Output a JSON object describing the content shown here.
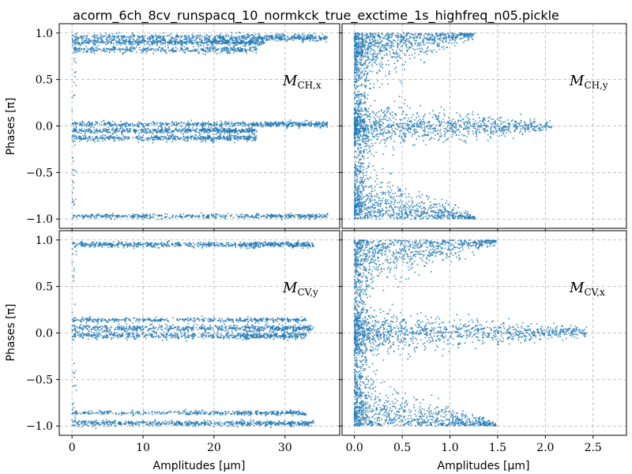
{
  "figure": {
    "title": "acorm_6ch_8cv_runspacq_10_normkck_true_exctime_1s_highfreq_n05.pickle",
    "ylabel": "Phases [π]",
    "xlabel": "Amplitudes [μm]"
  },
  "chart_data": [
    {
      "type": "scatter",
      "panel": "top-left",
      "label": "M_CH,x",
      "label_main": "M",
      "label_sub": "CH,x",
      "xlim": [
        -1.8,
        37.7
      ],
      "ylim": [
        -1.1,
        1.1
      ],
      "xticks": [
        0,
        10,
        20,
        30
      ],
      "yticks": [
        -1.0,
        -0.5,
        0.0,
        0.5,
        1.0
      ],
      "ytick_labels": [
        "−1.0",
        "−0.5",
        "0.0",
        "0.5",
        "1.0"
      ],
      "color": "#1f77b4",
      "pattern": "bands",
      "bands": [
        {
          "y": 0.95,
          "spread": 0.03,
          "xmax": 36,
          "density": 1.0
        },
        {
          "y": 0.9,
          "spread": 0.025,
          "xmax": 27,
          "density": 0.8
        },
        {
          "y": 0.82,
          "spread": 0.03,
          "xmax": 26,
          "density": 0.6
        },
        {
          "y": 0.02,
          "spread": 0.025,
          "xmax": 36,
          "density": 0.9
        },
        {
          "y": -0.05,
          "spread": 0.025,
          "xmax": 26,
          "density": 0.8
        },
        {
          "y": -0.13,
          "spread": 0.025,
          "xmax": 26,
          "density": 0.7
        },
        {
          "y": -0.97,
          "spread": 0.02,
          "xmax": 36,
          "density": 0.7
        }
      ]
    },
    {
      "type": "scatter",
      "panel": "top-right",
      "label": "M_CH,y",
      "label_main": "M",
      "label_sub": "CH,y",
      "xlim": [
        -0.13,
        2.85
      ],
      "ylim": [
        -1.1,
        1.1
      ],
      "xticks": [
        0.0,
        0.5,
        1.0,
        1.5,
        2.0,
        2.5
      ],
      "yticks": [
        -1.0,
        -0.5,
        0.0,
        0.5,
        1.0
      ],
      "color": "#1f77b4",
      "pattern": "cone",
      "xmax": 2.3
    },
    {
      "type": "scatter",
      "panel": "bottom-left",
      "label": "M_CV,y",
      "label_main": "M",
      "label_sub": "CV,y",
      "xlim": [
        -1.8,
        37.7
      ],
      "ylim": [
        -1.1,
        1.1
      ],
      "xticks": [
        0,
        10,
        20,
        30
      ],
      "xtick_labels": [
        "0",
        "10",
        "20",
        "30"
      ],
      "yticks": [
        -1.0,
        -0.5,
        0.0,
        0.5,
        1.0
      ],
      "ytick_labels": [
        "−1.0",
        "−0.5",
        "0.0",
        "0.5",
        "1.0"
      ],
      "color": "#1f77b4",
      "pattern": "bands",
      "bands": [
        {
          "y": 0.95,
          "spread": 0.025,
          "xmax": 34,
          "density": 1.0
        },
        {
          "y": 0.14,
          "spread": 0.02,
          "xmax": 33,
          "density": 0.6
        },
        {
          "y": 0.05,
          "spread": 0.03,
          "xmax": 34,
          "density": 0.9
        },
        {
          "y": -0.03,
          "spread": 0.03,
          "xmax": 33,
          "density": 0.9
        },
        {
          "y": -0.86,
          "spread": 0.02,
          "xmax": 33,
          "density": 0.6
        },
        {
          "y": -0.97,
          "spread": 0.025,
          "xmax": 34,
          "density": 0.9
        }
      ]
    },
    {
      "type": "scatter",
      "panel": "bottom-right",
      "label": "M_CV,x",
      "label_main": "M",
      "label_sub": "CV,x",
      "xlim": [
        -0.13,
        2.85
      ],
      "ylim": [
        -1.1,
        1.1
      ],
      "xticks": [
        0.0,
        0.5,
        1.0,
        1.5,
        2.0,
        2.5
      ],
      "xtick_labels": [
        "0.0",
        "0.5",
        "1.0",
        "1.5",
        "2.0",
        "2.5"
      ],
      "yticks": [
        -1.0,
        -0.5,
        0.0,
        0.5,
        1.0
      ],
      "color": "#1f77b4",
      "pattern": "cone",
      "xmax": 2.7
    }
  ]
}
